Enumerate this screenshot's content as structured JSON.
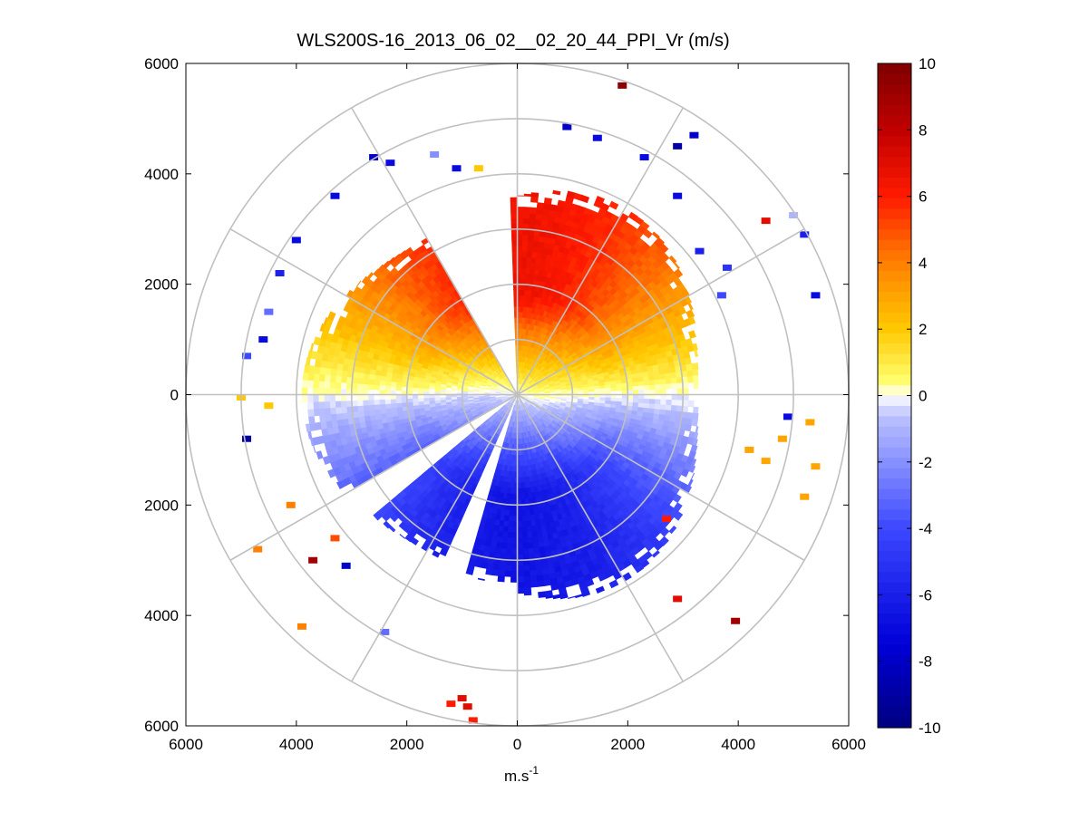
{
  "chart_data": {
    "type": "heatmap",
    "subtype": "polar-ppi",
    "title": "WLS200S-16_2013_06_02__02_20_44_PPI_Vr (m/s)",
    "xlabel": "m.s",
    "xlabel_superscript": "-1",
    "ylabel": "",
    "xlim": [
      -6000,
      6000
    ],
    "ylim": [
      -6000,
      6000
    ],
    "xticks": [
      {
        "value": -6000,
        "label": "6000"
      },
      {
        "value": -4000,
        "label": "4000"
      },
      {
        "value": -2000,
        "label": "2000"
      },
      {
        "value": 0,
        "label": "0"
      },
      {
        "value": 2000,
        "label": "2000"
      },
      {
        "value": 4000,
        "label": "4000"
      },
      {
        "value": 6000,
        "label": "6000"
      }
    ],
    "yticks": [
      {
        "value": 6000,
        "label": "6000"
      },
      {
        "value": 4000,
        "label": "4000"
      },
      {
        "value": 2000,
        "label": "2000"
      },
      {
        "value": 0,
        "label": "0"
      },
      {
        "value": -2000,
        "label": "2000"
      },
      {
        "value": -4000,
        "label": "4000"
      },
      {
        "value": -6000,
        "label": "6000"
      }
    ],
    "range_rings_m": [
      1000,
      2000,
      3000,
      4000,
      5000,
      6000
    ],
    "radial_spokes_deg": [
      0,
      30,
      60,
      90,
      120,
      150,
      180,
      210,
      240,
      270,
      300,
      330
    ],
    "colorbar": {
      "min": -10,
      "max": 10,
      "ticks": [
        10,
        8,
        6,
        4,
        2,
        0,
        -2,
        -4,
        -6,
        -8,
        -10
      ],
      "tick_labels": [
        "10",
        "8",
        "6",
        "4",
        "2",
        "0",
        "-2",
        "-4",
        "-6",
        "-8",
        "-10"
      ],
      "colors": {
        "neg_max": "#00007f",
        "neg_strong": "#0000d8",
        "neg_mid": "#3c48ff",
        "neg_light": "#bcc3ff",
        "zero": "#ffffff",
        "pos_light": "#ffff70",
        "pos_2": "#ffc800",
        "pos_4": "#ff8000",
        "pos_6": "#ff1a00",
        "pos_8": "#c00000",
        "pos_max": "#7f0000"
      }
    },
    "field": {
      "max_range_m": 3900,
      "shear_velocity_mps": 6.5,
      "data_gaps": [
        {
          "from_deg": 330,
          "to_deg": 358
        },
        {
          "from_deg": 196,
          "to_deg": 205
        },
        {
          "from_deg": 230,
          "to_deg": 240
        }
      ]
    },
    "scatter_points": [
      {
        "x": 1900,
        "y": 5600,
        "v": 9.5
      },
      {
        "x": 900,
        "y": 4850,
        "v": -8
      },
      {
        "x": 1450,
        "y": 4650,
        "v": -7
      },
      {
        "x": 2900,
        "y": 4500,
        "v": -9
      },
      {
        "x": 3200,
        "y": 4700,
        "v": -8
      },
      {
        "x": 2300,
        "y": 4300,
        "v": -7
      },
      {
        "x": 2900,
        "y": 3600,
        "v": -7
      },
      {
        "x": 4500,
        "y": 3150,
        "v": 7
      },
      {
        "x": 5000,
        "y": 3250,
        "v": -1
      },
      {
        "x": 5200,
        "y": 2900,
        "v": -6
      },
      {
        "x": 5400,
        "y": 1800,
        "v": -7
      },
      {
        "x": 3300,
        "y": 2600,
        "v": -6
      },
      {
        "x": 3800,
        "y": 2300,
        "v": -5
      },
      {
        "x": 3700,
        "y": 1800,
        "v": -4
      },
      {
        "x": -2600,
        "y": 4300,
        "v": -8
      },
      {
        "x": -2300,
        "y": 4200,
        "v": -7
      },
      {
        "x": -1500,
        "y": 4350,
        "v": -2
      },
      {
        "x": -1100,
        "y": 4100,
        "v": -7
      },
      {
        "x": -700,
        "y": 4100,
        "v": 2
      },
      {
        "x": -3300,
        "y": 3600,
        "v": -7
      },
      {
        "x": -4000,
        "y": 2800,
        "v": -7
      },
      {
        "x": -4300,
        "y": 2200,
        "v": -6
      },
      {
        "x": -4500,
        "y": 1500,
        "v": -3
      },
      {
        "x": -4600,
        "y": 1000,
        "v": -7
      },
      {
        "x": -4900,
        "y": 700,
        "v": -4
      },
      {
        "x": -5000,
        "y": -50,
        "v": 2
      },
      {
        "x": -4500,
        "y": -200,
        "v": 2
      },
      {
        "x": -4900,
        "y": -800,
        "v": -9
      },
      {
        "x": 4900,
        "y": -400,
        "v": -7
      },
      {
        "x": 4800,
        "y": -800,
        "v": 3
      },
      {
        "x": 5300,
        "y": -500,
        "v": 3
      },
      {
        "x": 5400,
        "y": -1300,
        "v": 3
      },
      {
        "x": 5200,
        "y": -1850,
        "v": 3
      },
      {
        "x": 4200,
        "y": -1000,
        "v": 3
      },
      {
        "x": 4500,
        "y": -1200,
        "v": 3
      },
      {
        "x": 2700,
        "y": -2250,
        "v": 6
      },
      {
        "x": 2900,
        "y": -3700,
        "v": 7
      },
      {
        "x": 3950,
        "y": -4100,
        "v": 9
      },
      {
        "x": -4100,
        "y": -2000,
        "v": 4
      },
      {
        "x": -4700,
        "y": -2800,
        "v": 4
      },
      {
        "x": -3700,
        "y": -3000,
        "v": 9
      },
      {
        "x": -3100,
        "y": -3100,
        "v": -8
      },
      {
        "x": -3300,
        "y": -2600,
        "v": 5
      },
      {
        "x": -3900,
        "y": -4200,
        "v": 4
      },
      {
        "x": -2400,
        "y": -4300,
        "v": -3
      },
      {
        "x": -1200,
        "y": -5600,
        "v": 6
      },
      {
        "x": -900,
        "y": -5650,
        "v": 7
      },
      {
        "x": -800,
        "y": -5900,
        "v": 6
      },
      {
        "x": -1000,
        "y": -5500,
        "v": 7
      }
    ]
  }
}
